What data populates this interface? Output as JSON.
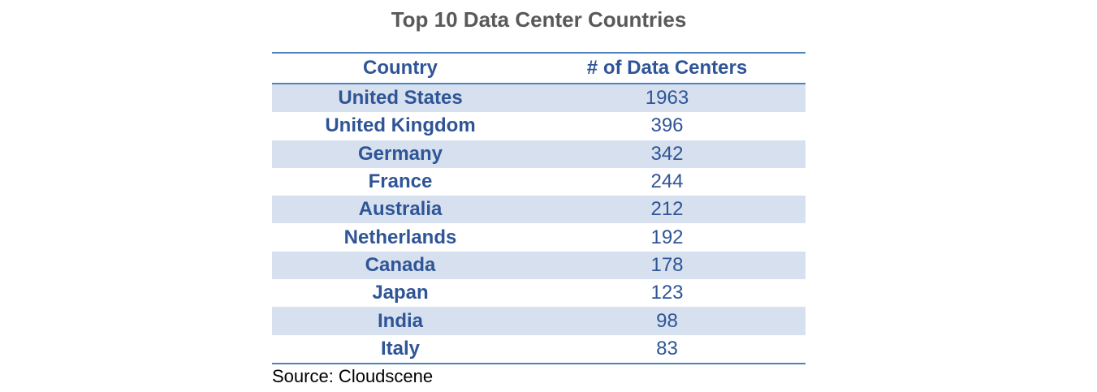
{
  "chart_data": {
    "type": "table",
    "title": "Top 10 Data Center Countries",
    "columns": [
      "Country",
      "# of Data Centers"
    ],
    "rows": [
      {
        "country": "United States",
        "value": "1963"
      },
      {
        "country": "United Kingdom",
        "value": "396"
      },
      {
        "country": "Germany",
        "value": "342"
      },
      {
        "country": "France",
        "value": "244"
      },
      {
        "country": "Australia",
        "value": "212"
      },
      {
        "country": "Netherlands",
        "value": "192"
      },
      {
        "country": "Canada",
        "value": "178"
      },
      {
        "country": "Japan",
        "value": "123"
      },
      {
        "country": "India",
        "value": "98"
      },
      {
        "country": "Italy",
        "value": "83"
      }
    ],
    "source": "Source: Cloudscene"
  },
  "colors": {
    "accent": "#4f81bd",
    "band": "#d6e0ee",
    "text": "#2f5597",
    "title": "#595959"
  }
}
